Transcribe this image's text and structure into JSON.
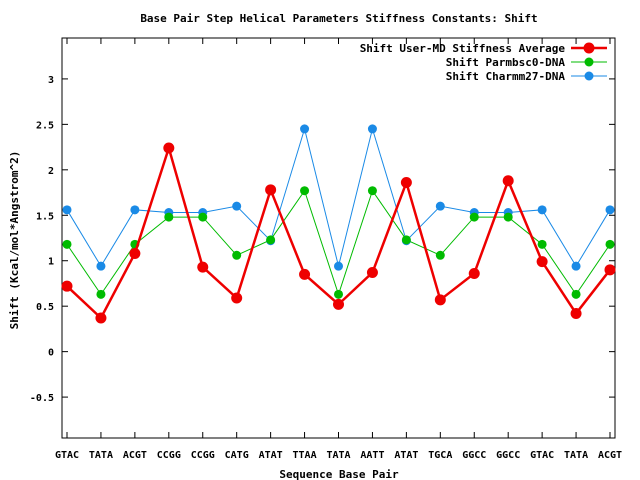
{
  "chart_data": {
    "type": "line",
    "title": "Base Pair Step Helical Parameters Stiffness Constants: Shift",
    "xlabel": "Sequence Base Pair",
    "ylabel": "Shift (Kcal/mol*Angstrom^2)",
    "ylim": [
      -0.95,
      3.45
    ],
    "yticks": [
      -0.5,
      0,
      0.5,
      1,
      1.5,
      2,
      2.5,
      3
    ],
    "ytick_labels": [
      "-0.5",
      "0",
      "0.5",
      "1",
      "1.5",
      "2",
      "2.5",
      "3"
    ],
    "grid": false,
    "legend_position": "top-right",
    "categories": [
      "GTAC",
      "TATA",
      "ACGT",
      "CCGG",
      "CCGG",
      "CATG",
      "ATAT",
      "TTAA",
      "TATA",
      "AATT",
      "ATAT",
      "TGCA",
      "GGCC",
      "GGCC",
      "GTAC",
      "TATA",
      "ACGT"
    ],
    "series": [
      {
        "name": "Shift User-MD Stiffness Average",
        "color": "#ee0000",
        "values": [
          0.72,
          0.37,
          1.08,
          2.24,
          0.93,
          0.59,
          1.78,
          0.85,
          0.52,
          0.87,
          1.86,
          0.57,
          0.86,
          1.88,
          0.99,
          0.42,
          0.9
        ]
      },
      {
        "name": "Shift Parmbsc0-DNA",
        "color": "#00bb00",
        "values": [
          1.18,
          0.63,
          1.18,
          1.48,
          1.48,
          1.06,
          1.23,
          1.77,
          0.63,
          1.77,
          1.23,
          1.06,
          1.48,
          1.48,
          1.18,
          0.63,
          1.18
        ]
      },
      {
        "name": "Shift Charmm27-DNA",
        "color": "#1a8ae6",
        "values": [
          1.56,
          0.94,
          1.56,
          1.53,
          1.53,
          1.6,
          1.22,
          2.45,
          0.94,
          2.45,
          1.22,
          1.6,
          1.53,
          1.53,
          1.56,
          0.94,
          1.56
        ]
      }
    ]
  }
}
